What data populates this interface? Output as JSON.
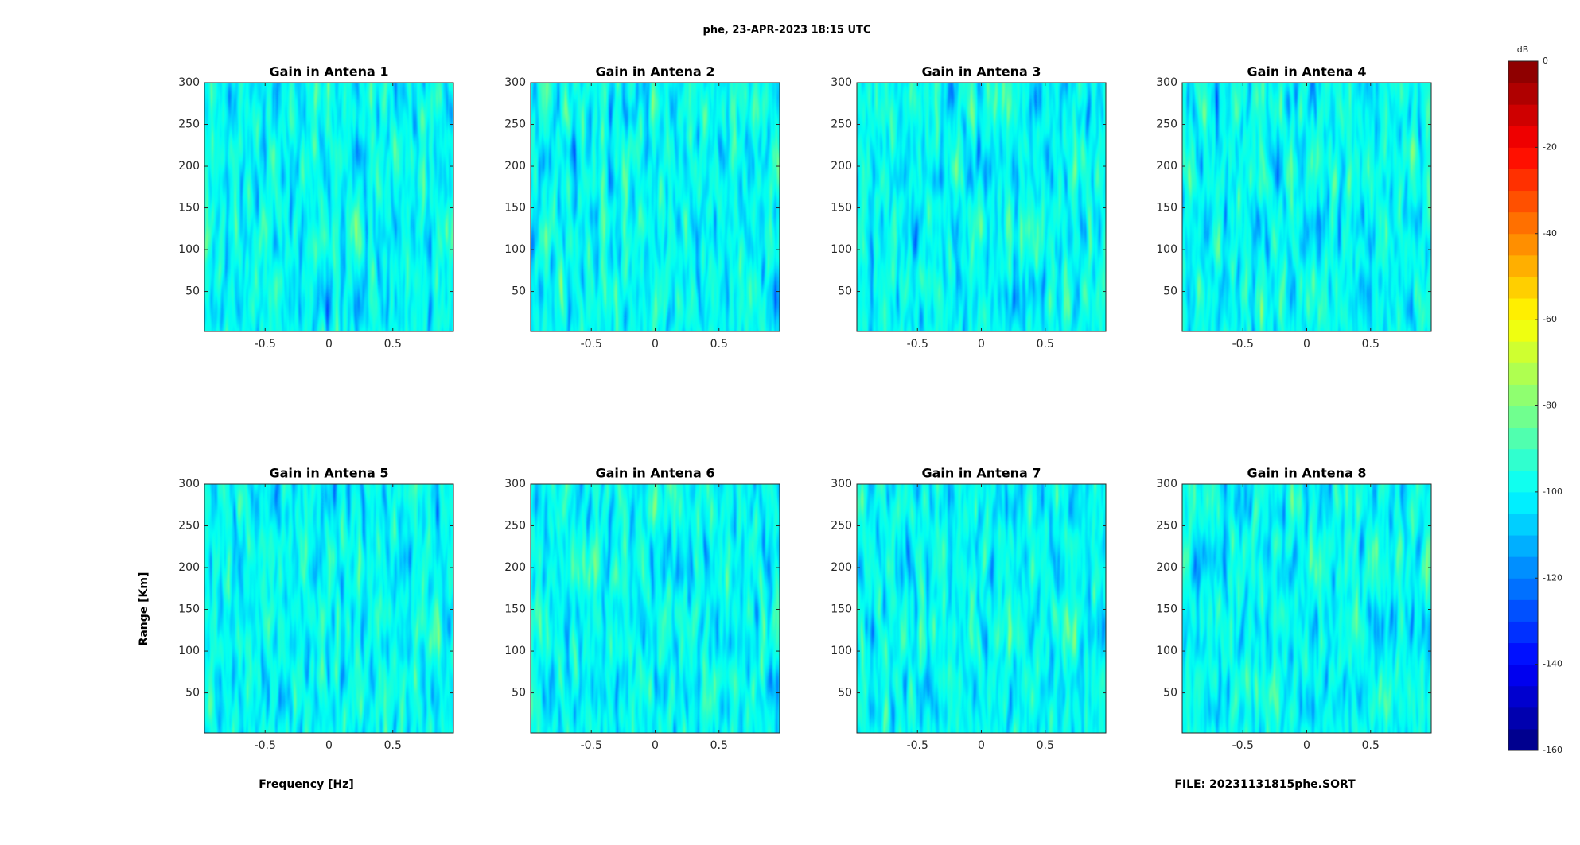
{
  "title": "phe, 23-APR-2023 18:15 UTC",
  "xlabel": "Frequency [Hz]",
  "ylabel": "Range [Km]",
  "footnote": "FILE: 20231131815phe.SORT",
  "colorbar": {
    "label": "dB",
    "colormap": "jet",
    "levels": 32,
    "clim": [
      -160,
      0
    ],
    "ticks": [
      0,
      -20,
      -40,
      -60,
      -80,
      -100,
      -120,
      -140,
      -160
    ]
  },
  "chart_data": [
    {
      "type": "heatmap",
      "title": "Gain in Antena 1",
      "xlim": [
        -0.975,
        0.975
      ],
      "ylim": [
        2,
        300
      ],
      "xticks": [
        -0.5,
        0,
        0.5
      ],
      "yticks": [
        50,
        100,
        150,
        200,
        250,
        300
      ]
    },
    {
      "type": "heatmap",
      "title": "Gain in Antena 2",
      "xlim": [
        -0.975,
        0.975
      ],
      "ylim": [
        2,
        300
      ],
      "xticks": [
        -0.5,
        0,
        0.5
      ],
      "yticks": [
        50,
        100,
        150,
        200,
        250,
        300
      ]
    },
    {
      "type": "heatmap",
      "title": "Gain in Antena 3",
      "xlim": [
        -0.975,
        0.975
      ],
      "ylim": [
        2,
        300
      ],
      "xticks": [
        -0.5,
        0,
        0.5
      ],
      "yticks": [
        50,
        100,
        150,
        200,
        250,
        300
      ]
    },
    {
      "type": "heatmap",
      "title": "Gain in Antena 4",
      "xlim": [
        -0.975,
        0.975
      ],
      "ylim": [
        2,
        300
      ],
      "xticks": [
        -0.5,
        0,
        0.5
      ],
      "yticks": [
        50,
        100,
        150,
        200,
        250,
        300
      ]
    },
    {
      "type": "heatmap",
      "title": "Gain in Antena 5",
      "xlim": [
        -0.975,
        0.975
      ],
      "ylim": [
        2,
        300
      ],
      "xticks": [
        -0.5,
        0,
        0.5
      ],
      "yticks": [
        50,
        100,
        150,
        200,
        250,
        300
      ]
    },
    {
      "type": "heatmap",
      "title": "Gain in Antena 6",
      "xlim": [
        -0.975,
        0.975
      ],
      "ylim": [
        2,
        300
      ],
      "xticks": [
        -0.5,
        0,
        0.5
      ],
      "yticks": [
        50,
        100,
        150,
        200,
        250,
        300
      ]
    },
    {
      "type": "heatmap",
      "title": "Gain in Antena 7",
      "xlim": [
        -0.975,
        0.975
      ],
      "ylim": [
        2,
        300
      ],
      "xticks": [
        -0.5,
        0,
        0.5
      ],
      "yticks": [
        50,
        100,
        150,
        200,
        250,
        300
      ]
    },
    {
      "type": "heatmap",
      "title": "Gain in Antena 8",
      "xlim": [
        -0.975,
        0.975
      ],
      "ylim": [
        2,
        300
      ],
      "xticks": [
        -0.5,
        0,
        0.5
      ],
      "yticks": [
        50,
        100,
        150,
        200,
        250,
        300
      ]
    }
  ]
}
